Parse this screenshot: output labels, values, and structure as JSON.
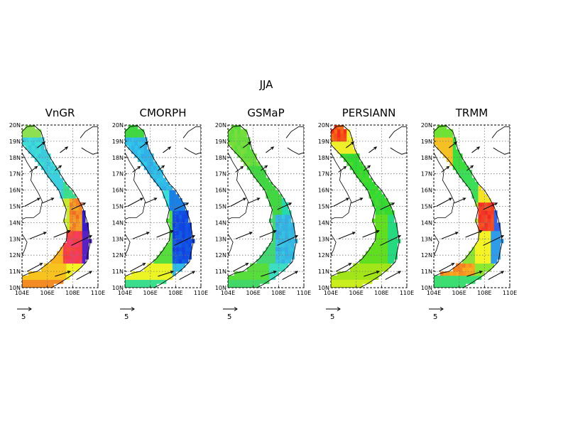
{
  "figure": {
    "title": "JJA",
    "panels": [
      {
        "title": "VnGR",
        "scheme": "vngr"
      },
      {
        "title": "CMORPH",
        "scheme": "cmorph"
      },
      {
        "title": "GSMaP",
        "scheme": "gsmap"
      },
      {
        "title": "PERSIANN",
        "scheme": "persiann"
      },
      {
        "title": "TRMM",
        "scheme": "trmm"
      }
    ],
    "lat_ticks": [
      "20N",
      "19N",
      "18N",
      "17N",
      "16N",
      "15N",
      "14N",
      "13N",
      "12N",
      "11N",
      "10N"
    ],
    "lon_ticks": [
      "104E",
      "106E",
      "108E",
      "110E"
    ],
    "reference_vector_label": "5",
    "lat_range": [
      10,
      20
    ],
    "lon_range": [
      104,
      110
    ]
  }
}
